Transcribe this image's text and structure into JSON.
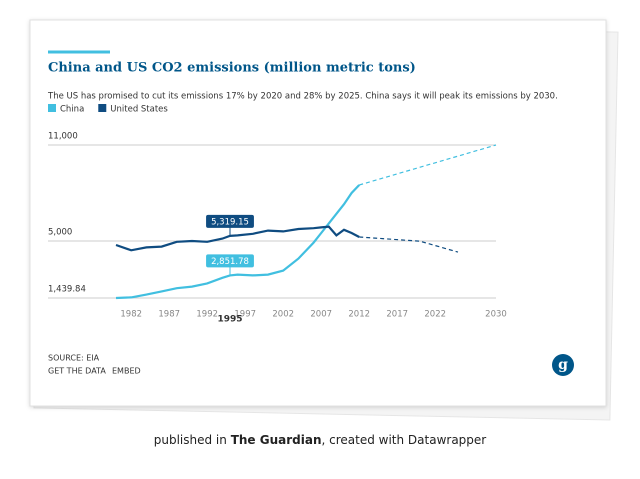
{
  "chart_data": {
    "type": "line",
    "title": "China and US CO2 emissions (million metric tons)",
    "subtitle": "The US has promised to cut its emissions 17% by 2020 and 28% by 2025. China says it will peak its emissions by 2030.",
    "x": [
      1980,
      1982,
      1984,
      1986,
      1988,
      1990,
      1992,
      1994,
      1995,
      1996,
      1998,
      2000,
      2002,
      2004,
      2006,
      2007,
      2008,
      2009,
      2010,
      2011,
      2012
    ],
    "series": [
      {
        "name": "China",
        "color": "#41bfe0",
        "values": [
          1440,
          1480,
          1650,
          1850,
          2050,
          2150,
          2350,
          2700,
          2851.78,
          2900,
          2850,
          2900,
          3150,
          3900,
          4900,
          5500,
          6100,
          6700,
          7300,
          8000,
          8500
        ],
        "value_labels": [
          null,
          null,
          null,
          null,
          null,
          null,
          null,
          null,
          "2,851.78",
          null,
          null,
          null,
          null,
          null,
          null,
          null,
          null,
          null,
          null,
          null,
          null
        ],
        "projection": {
          "x": [
            2012,
            2030
          ],
          "values": [
            8500,
            11000
          ]
        }
      },
      {
        "name": "United States",
        "color": "#0f4c81",
        "values": [
          4750,
          4420,
          4600,
          4650,
          4950,
          5000,
          4950,
          5150,
          5319.15,
          5350,
          5450,
          5650,
          5600,
          5750,
          5800,
          5850,
          5900,
          5350,
          5700,
          5500,
          5250
        ],
        "value_labels": [
          null,
          null,
          null,
          null,
          null,
          null,
          null,
          null,
          "5,319.15",
          null,
          null,
          null,
          null,
          null,
          null,
          null,
          null,
          null,
          null,
          null,
          null
        ],
        "projection": {
          "x": [
            2012,
            2020,
            2025
          ],
          "values": [
            5250,
            4990,
            4310
          ]
        }
      }
    ],
    "xlim": [
      1980,
      2030
    ],
    "xticks": [
      1982,
      1987,
      1992,
      1997,
      2002,
      2007,
      2012,
      2017,
      2022,
      2030
    ],
    "highlight_x": 1995,
    "ylim": [
      1439.84,
      11000
    ],
    "yticks": [
      {
        "value": 1439.84,
        "label": "1,439.84"
      },
      {
        "value": 5000,
        "label": "5,000"
      },
      {
        "value": 11000,
        "label": "11,000"
      }
    ],
    "grid": true,
    "source": "SOURCE: EIA",
    "links": [
      "GET THE DATA",
      "EMBED"
    ]
  },
  "caption": {
    "prefix": "published in",
    "publisher": "The Guardian",
    "suffix": ", created with Datawrapper"
  }
}
